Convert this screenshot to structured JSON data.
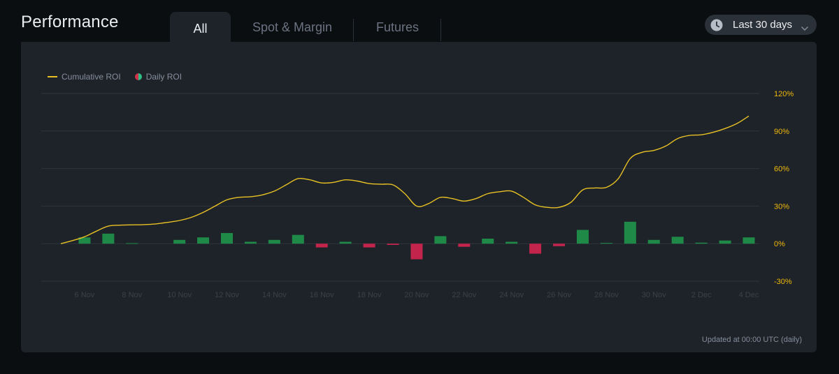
{
  "header": {
    "title": "Performance",
    "tabs": [
      {
        "label": "All",
        "active": true
      },
      {
        "label": "Spot & Margin",
        "active": false
      },
      {
        "label": "Futures",
        "active": false
      }
    ],
    "range_label": "Last 30 days"
  },
  "colors": {
    "line": "#e8c124",
    "positive": "#1f8a48",
    "negative": "#c2244b",
    "axis_label": "#f0b90b",
    "x_label": "#3b4149",
    "grid": "#2e343c"
  },
  "legend": {
    "line_label": "Cumulative ROI",
    "bar_label": "Daily ROI"
  },
  "footer": {
    "updated_text": "Updated at 00:00 UTC (daily)"
  },
  "chart_data": {
    "type": "bar+line",
    "title": "",
    "ylim": [
      -30,
      120
    ],
    "y_ticks": [
      120,
      90,
      60,
      30,
      0,
      -30
    ],
    "y_tick_labels": [
      "120%",
      "90%",
      "60%",
      "30%",
      "0%",
      "-30%"
    ],
    "x_tick_labels": [
      "6 Nov",
      "8 Nov",
      "10 Nov",
      "12 Nov",
      "14 Nov",
      "16 Nov",
      "18 Nov",
      "20 Nov",
      "22 Nov",
      "24 Nov",
      "26 Nov",
      "28 Nov",
      "30 Nov",
      "2 Dec",
      "4 Dec"
    ],
    "x_tick_positions": [
      1,
      3,
      5,
      7,
      9,
      11,
      13,
      15,
      17,
      19,
      21,
      23,
      25,
      27,
      29
    ],
    "series": [
      {
        "name": "Daily ROI",
        "type": "bar",
        "x": [
          1,
          2,
          3,
          5,
          6,
          7,
          8,
          9,
          10,
          11,
          12,
          13,
          14,
          15,
          16,
          17,
          18,
          19,
          20,
          21,
          22,
          23,
          24,
          25,
          26,
          27,
          28,
          29
        ],
        "values": [
          5,
          8,
          0.4,
          3,
          5,
          8.5,
          1.5,
          3,
          7,
          -3,
          1.5,
          -3,
          -1,
          -12.5,
          6,
          -2.5,
          4,
          1.5,
          -8,
          -2,
          11,
          0.6,
          17.5,
          3,
          5.5,
          0.8,
          2.5,
          5
        ]
      },
      {
        "name": "Cumulative ROI",
        "type": "line",
        "x": [
          0,
          0.5,
          1,
          1.5,
          2,
          2.5,
          3,
          3.5,
          4,
          4.5,
          5,
          5.5,
          6,
          6.5,
          7,
          7.5,
          8,
          8.5,
          9,
          9.5,
          10,
          10.5,
          11,
          11.5,
          12,
          12.5,
          13,
          13.5,
          14,
          14.5,
          15,
          15.5,
          16,
          16.5,
          17,
          17.5,
          18,
          18.5,
          19,
          19.5,
          20,
          20.5,
          21,
          21.5,
          22,
          22.5,
          23,
          23.5,
          24,
          24.5,
          25,
          25.5,
          26,
          26.5,
          27,
          27.5,
          28,
          28.5,
          29
        ],
        "values": [
          0,
          2.5,
          5.5,
          10,
          14,
          14.8,
          15,
          15.2,
          15.8,
          17,
          18.5,
          21,
          25,
          30,
          35,
          37,
          37.5,
          39,
          42,
          47,
          52,
          51,
          48.5,
          49,
          51,
          50,
          48,
          47.5,
          47,
          40,
          30,
          32,
          37,
          36,
          34,
          36,
          40,
          41.5,
          42,
          37,
          31,
          29,
          29,
          33,
          43,
          44.5,
          45,
          52,
          68,
          73,
          74.5,
          78,
          84,
          86.5,
          87,
          89,
          92,
          96,
          102
        ]
      }
    ]
  }
}
